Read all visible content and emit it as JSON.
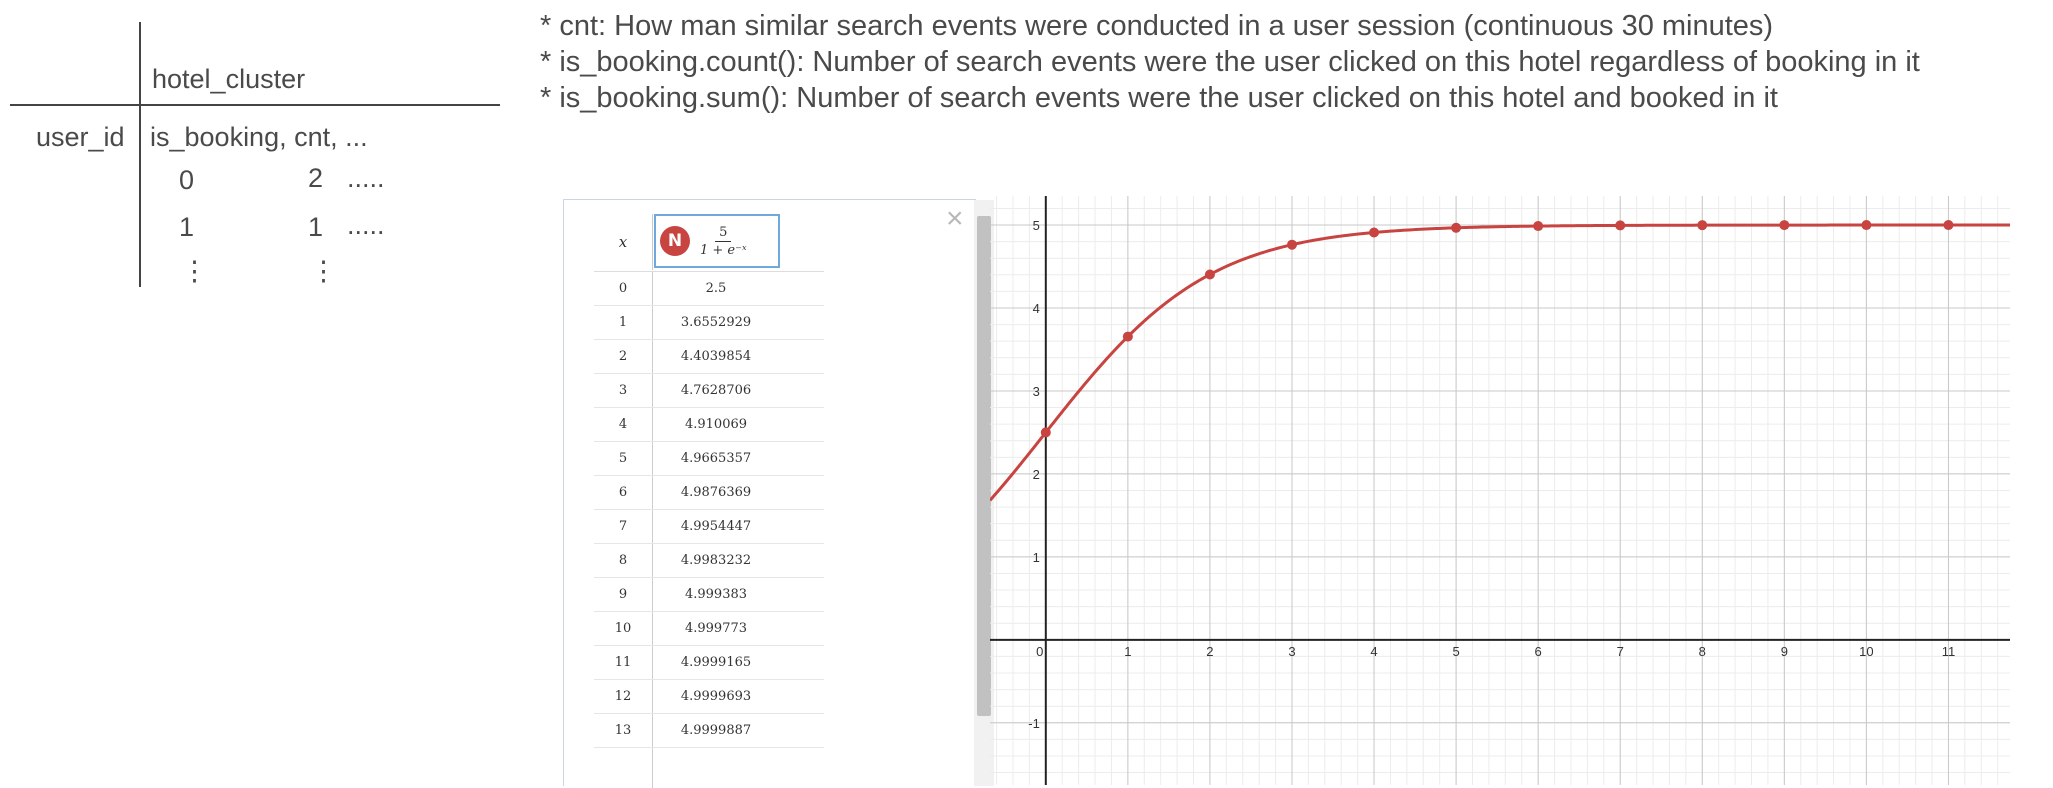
{
  "schematic": {
    "column_header": "hotel_cluster",
    "row_header": "user_id",
    "sub_header": "is_booking, cnt, ...",
    "rows": [
      {
        "is_booking": "0",
        "cnt": "2",
        "rest": "....."
      },
      {
        "is_booking": "1",
        "cnt": "1",
        "rest": "....."
      }
    ],
    "ellipsis": "⋮"
  },
  "notes": [
    "* cnt: How man similar search events were conducted in a user session (continuous 30 minutes)",
    "* is_booking.count(): Number of search events were the user clicked on this hotel regardless of booking in it",
    "* is_booking.sum(): Number of search events were the user clicked on this hotel and booked in it"
  ],
  "table": {
    "x_header": "x",
    "logo_letter": "N",
    "formula_numerator": "5",
    "formula_denominator": "1 + e⁻ˣ",
    "close_glyph": "×",
    "rows": [
      {
        "x": "0",
        "y": "2.5"
      },
      {
        "x": "1",
        "y": "3.6552929"
      },
      {
        "x": "2",
        "y": "4.4039854"
      },
      {
        "x": "3",
        "y": "4.7628706"
      },
      {
        "x": "4",
        "y": "4.910069"
      },
      {
        "x": "5",
        "y": "4.9665357"
      },
      {
        "x": "6",
        "y": "4.9876369"
      },
      {
        "x": "7",
        "y": "4.9954447"
      },
      {
        "x": "8",
        "y": "4.9983232"
      },
      {
        "x": "9",
        "y": "4.999383"
      },
      {
        "x": "10",
        "y": "4.999773"
      },
      {
        "x": "11",
        "y": "4.9999165"
      },
      {
        "x": "12",
        "y": "4.9999693"
      },
      {
        "x": "13",
        "y": "4.9999887"
      }
    ]
  },
  "chart_data": {
    "type": "line",
    "function": "5 / (1 + e^-x)",
    "xlim": [
      -0.68,
      11.75
    ],
    "ylim": [
      -1.75,
      5.35
    ],
    "x_ticks": [
      0,
      1,
      2,
      3,
      4,
      5,
      6,
      7,
      8,
      9,
      10,
      11
    ],
    "y_ticks": [
      -1,
      1,
      2,
      3,
      4,
      5
    ],
    "grid": true,
    "series": [
      {
        "color": "#c74440",
        "points_x": [
          0,
          1,
          2,
          3,
          4,
          5,
          6,
          7,
          8,
          9,
          10,
          11
        ],
        "points_y": [
          2.5,
          3.6552929,
          4.4039854,
          4.7628706,
          4.910069,
          4.9665357,
          4.9876369,
          4.9954447,
          4.9983232,
          4.999383,
          4.999773,
          4.9999165
        ]
      }
    ]
  }
}
